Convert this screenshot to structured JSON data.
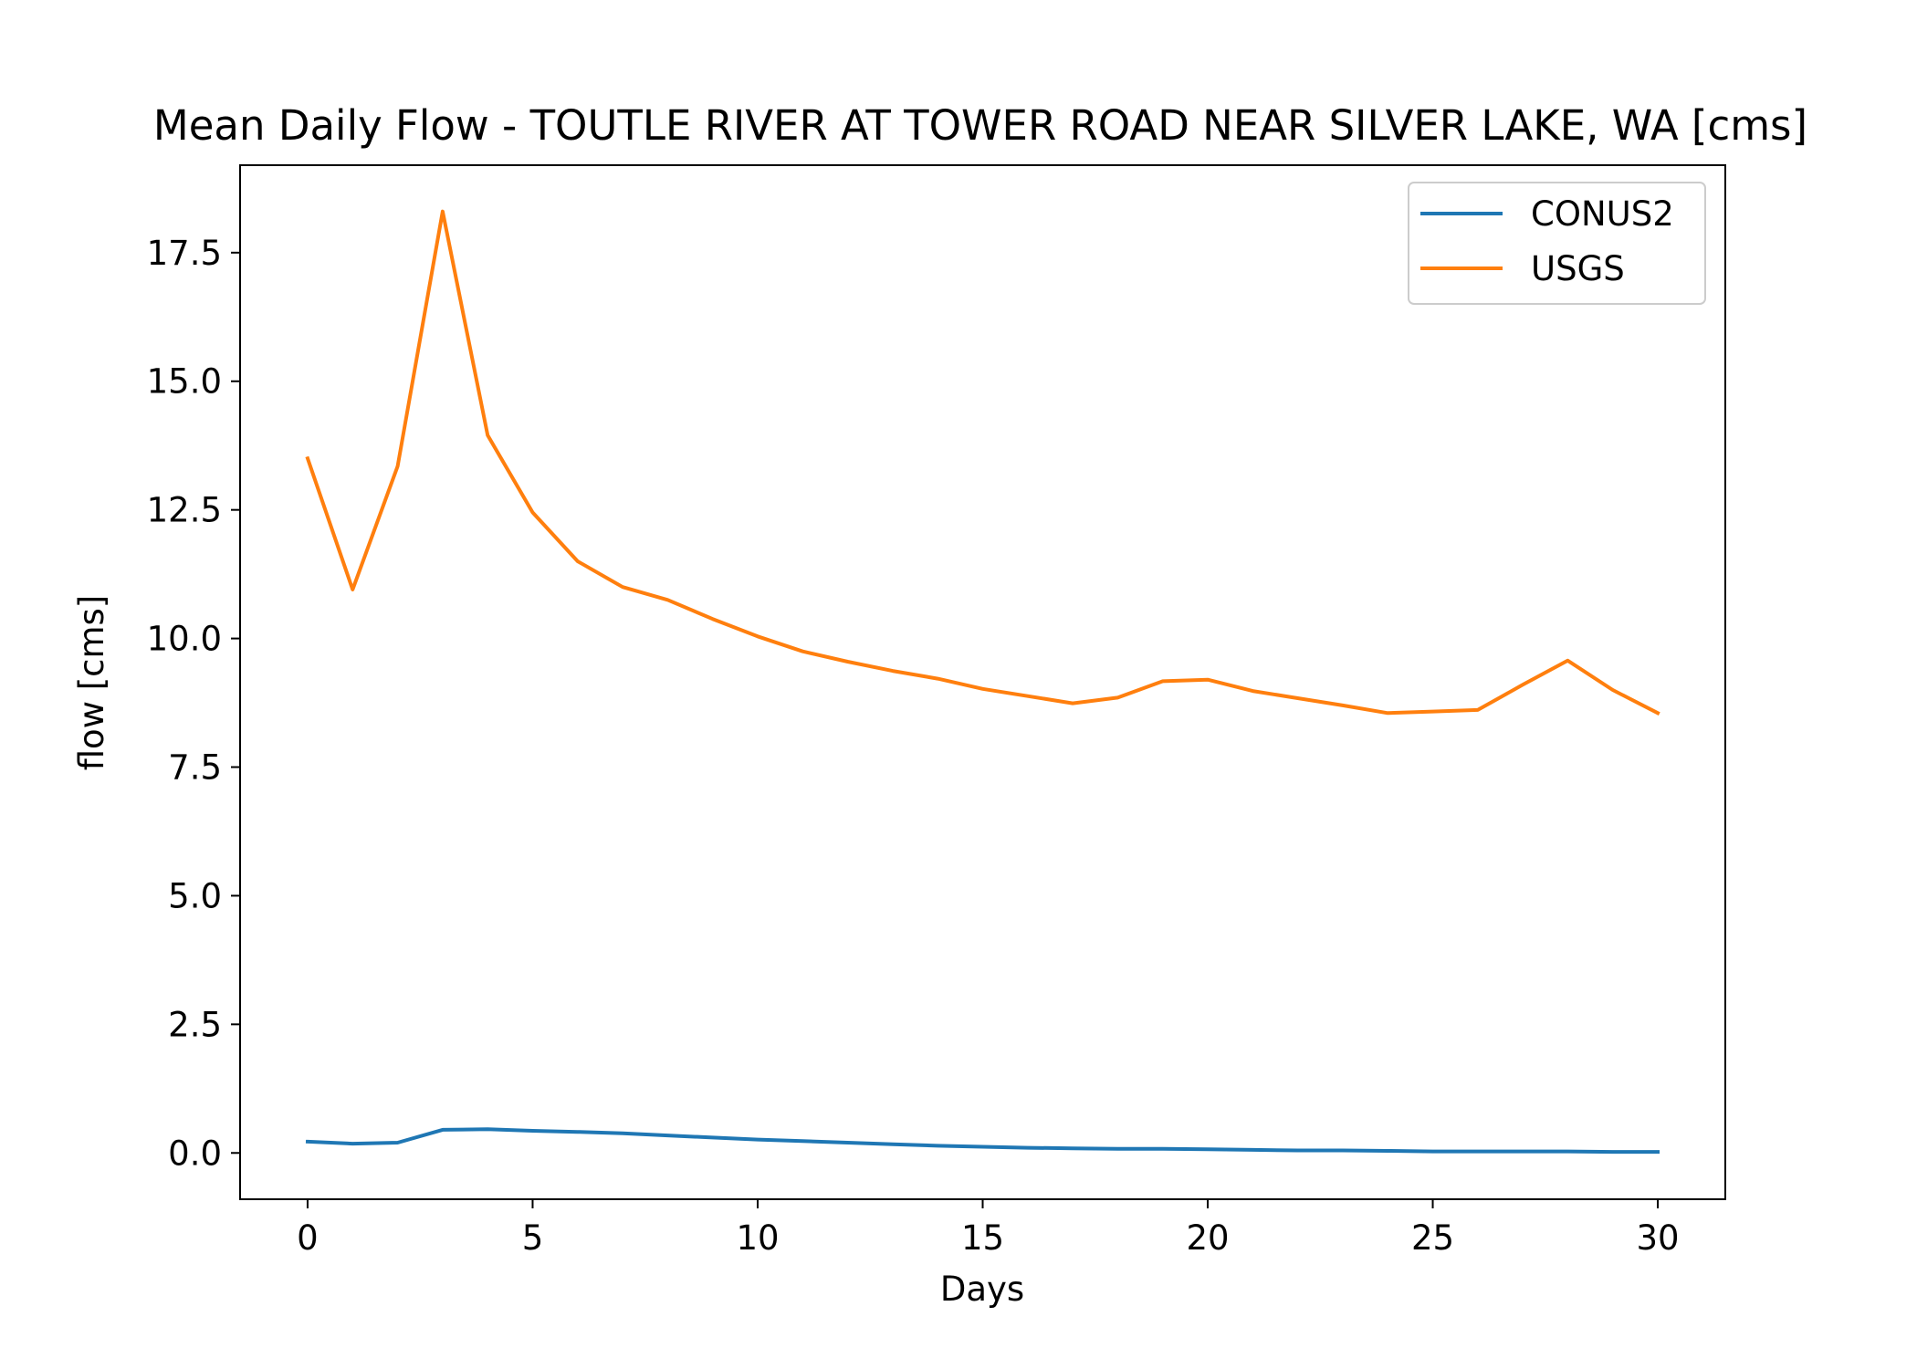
{
  "chart_data": {
    "type": "line",
    "title": "Mean Daily Flow - TOUTLE RIVER AT TOWER ROAD NEAR SILVER LAKE, WA [cms]",
    "xlabel": "Days",
    "ylabel": "flow [cms]",
    "xlim": [
      -1.5,
      31.5
    ],
    "ylim": [
      -0.9,
      19.2
    ],
    "x_ticks": [
      0,
      5,
      10,
      15,
      20,
      25,
      30
    ],
    "x_tick_labels": [
      "0",
      "5",
      "10",
      "15",
      "20",
      "25",
      "30"
    ],
    "y_ticks": [
      0,
      2.5,
      5,
      7.5,
      10,
      12.5,
      15,
      17.5
    ],
    "y_tick_labels": [
      "0.0",
      "2.5",
      "5.0",
      "7.5",
      "10.0",
      "12.5",
      "15.0",
      "17.5"
    ],
    "grid": false,
    "legend_position": "top-right",
    "x": [
      0,
      1,
      2,
      3,
      4,
      5,
      6,
      7,
      8,
      9,
      10,
      11,
      12,
      13,
      14,
      15,
      16,
      17,
      18,
      19,
      20,
      21,
      22,
      23,
      24,
      25,
      26,
      27,
      28,
      29,
      30
    ],
    "series": [
      {
        "name": "CONUS2",
        "color": "#1f77b4",
        "values": [
          0.22,
          0.18,
          0.2,
          0.45,
          0.46,
          0.43,
          0.41,
          0.38,
          0.34,
          0.3,
          0.26,
          0.23,
          0.2,
          0.17,
          0.14,
          0.12,
          0.1,
          0.09,
          0.08,
          0.08,
          0.07,
          0.06,
          0.05,
          0.05,
          0.04,
          0.03,
          0.03,
          0.03,
          0.03,
          0.02,
          0.02
        ]
      },
      {
        "name": "USGS",
        "color": "#ff7f0e",
        "values": [
          13.5,
          10.95,
          13.35,
          18.3,
          13.95,
          12.45,
          11.5,
          11.0,
          10.75,
          10.38,
          10.04,
          9.75,
          9.55,
          9.37,
          9.22,
          9.02,
          8.88,
          8.74,
          8.85,
          9.17,
          9.2,
          8.98,
          8.84,
          8.7,
          8.55,
          8.58,
          8.61,
          9.1,
          9.57,
          9.0,
          8.55
        ]
      }
    ]
  }
}
